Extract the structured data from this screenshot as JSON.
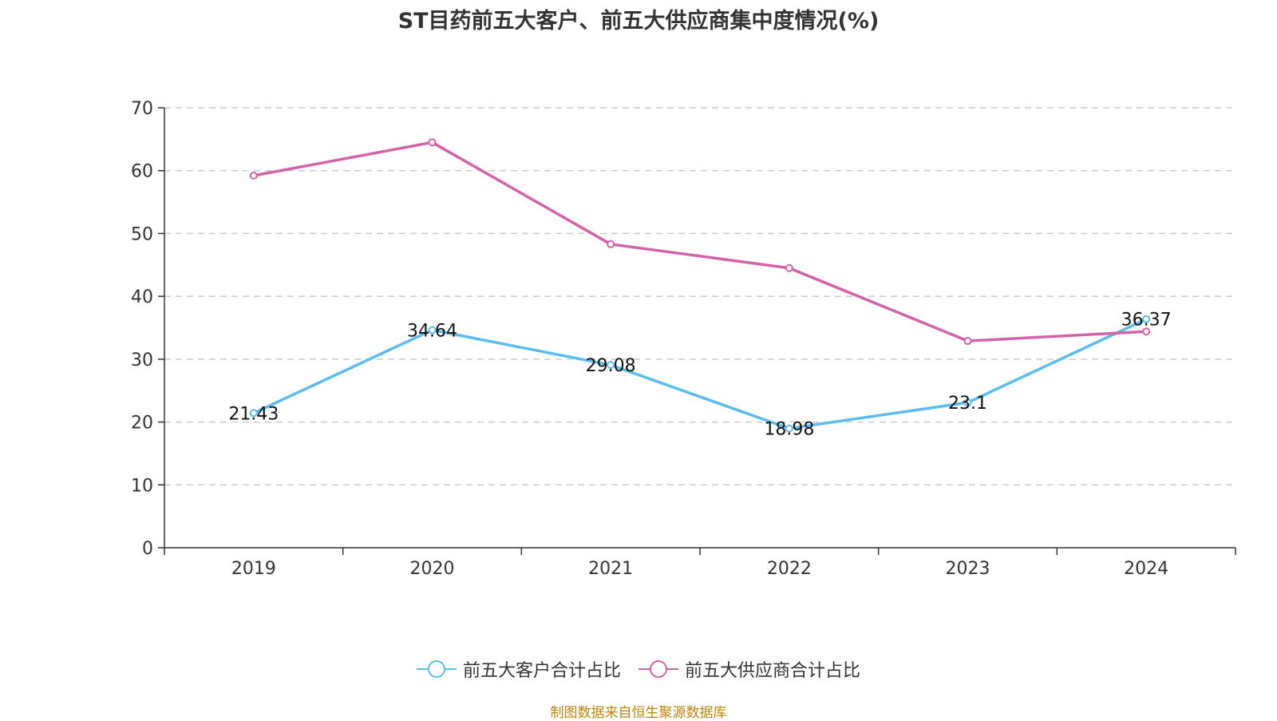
{
  "chart_data": {
    "type": "line",
    "title": "ST目药前五大客户、前五大供应商集中度情况(%)",
    "categories": [
      "2019",
      "2020",
      "2021",
      "2022",
      "2023",
      "2024"
    ],
    "ylim": [
      0,
      70
    ],
    "yticks": [
      "0",
      "10",
      "20",
      "30",
      "40",
      "50",
      "60",
      "70"
    ],
    "grid": true,
    "legend_position": "bottom",
    "series": [
      {
        "name": "前五大客户合计占比",
        "color": "#5bbcf0",
        "values": [
          21.43,
          34.64,
          29.08,
          18.98,
          23.1,
          36.37
        ],
        "labels": [
          "21.43",
          "34.64",
          "29.08",
          "18.98",
          "23.1",
          "36.37"
        ]
      },
      {
        "name": "前五大供应商合计占比",
        "color": "#d362a8",
        "values": [
          59.2,
          64.5,
          48.3,
          44.5,
          32.9,
          34.4
        ]
      }
    ]
  },
  "source": "制图数据来自恒生聚源数据库"
}
